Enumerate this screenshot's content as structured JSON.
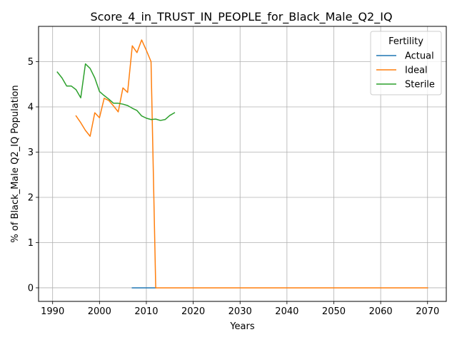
{
  "chart_data": {
    "type": "line",
    "title": "Score_4_in_TRUST_IN_PEOPLE_for_Black_Male_Q2_IQ",
    "xlabel": "Years",
    "ylabel": "% of Black_Male Q2_IQ Population",
    "xlim": [
      1987,
      2074
    ],
    "ylim": [
      -0.3,
      5.78
    ],
    "xticks": [
      1990,
      2000,
      2010,
      2020,
      2030,
      2040,
      2050,
      2060,
      2070
    ],
    "yticks": [
      0,
      1,
      2,
      3,
      4,
      5
    ],
    "grid": true,
    "legend": {
      "title": "Fertility",
      "placement": "top-right"
    },
    "series": [
      {
        "name": "Actual",
        "color": "#1f77b4",
        "x": [
          2007,
          2008,
          2009,
          2010,
          2011,
          2012
        ],
        "y": [
          0,
          0,
          0,
          0,
          0,
          0
        ]
      },
      {
        "name": "Ideal",
        "color": "#ff7f0e",
        "x": [
          1995,
          1996,
          1997,
          1998,
          1999,
          2000,
          2001,
          2002,
          2003,
          2004,
          2005,
          2006,
          2007,
          2008,
          2009,
          2010,
          2011,
          2012,
          2020,
          2030,
          2040,
          2050,
          2060,
          2070
        ],
        "y": [
          3.8,
          3.65,
          3.48,
          3.35,
          3.87,
          3.76,
          4.19,
          4.14,
          4.02,
          3.89,
          4.42,
          4.32,
          5.35,
          5.2,
          5.48,
          5.25,
          5.0,
          0,
          0,
          0,
          0,
          0,
          0,
          0
        ]
      },
      {
        "name": "Sterile",
        "color": "#2ca02c",
        "x": [
          1991,
          1992,
          1993,
          1994,
          1995,
          1996,
          1997,
          1998,
          1999,
          2000,
          2001,
          2002,
          2003,
          2004,
          2005,
          2006,
          2007,
          2008,
          2009,
          2010,
          2011,
          2012,
          2013,
          2014,
          2015,
          2016
        ],
        "y": [
          4.77,
          4.64,
          4.46,
          4.46,
          4.38,
          4.2,
          4.95,
          4.85,
          4.64,
          4.34,
          4.25,
          4.17,
          4.08,
          4.08,
          4.06,
          4.03,
          3.97,
          3.92,
          3.8,
          3.75,
          3.72,
          3.73,
          3.7,
          3.72,
          3.81,
          3.87
        ]
      }
    ]
  }
}
